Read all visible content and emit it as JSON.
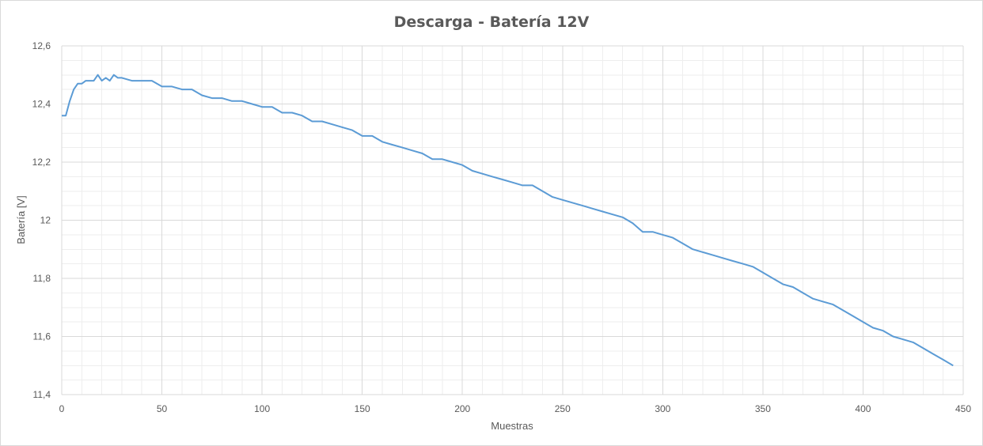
{
  "chart_data": {
    "type": "line",
    "title": "Descarga - Batería 12V",
    "xlabel": "Muestras",
    "ylabel": "Batería [V]",
    "xlim": [
      0,
      450
    ],
    "ylim": [
      11.4,
      12.6
    ],
    "x_ticks": [
      "0",
      "50",
      "100",
      "150",
      "200",
      "250",
      "300",
      "350",
      "400",
      "450"
    ],
    "y_ticks": [
      "11,4",
      "11,6",
      "11,8",
      "12",
      "12,2",
      "12,4",
      "12,6"
    ],
    "grid": true,
    "legend": "none",
    "colors": {
      "line": "#5b9bd5",
      "major_grid": "#d9d9d9",
      "minor_grid": "#eeeeee"
    },
    "series": [
      {
        "x": [
          0,
          2,
          4,
          6,
          8,
          10,
          12,
          14,
          16,
          18,
          20,
          22,
          24,
          26,
          28,
          30,
          35,
          40,
          45,
          50,
          55,
          60,
          65,
          70,
          75,
          80,
          85,
          90,
          95,
          100,
          105,
          110,
          115,
          120,
          125,
          130,
          135,
          140,
          145,
          150,
          155,
          160,
          165,
          170,
          175,
          180,
          185,
          190,
          195,
          200,
          205,
          210,
          215,
          220,
          225,
          230,
          235,
          240,
          245,
          250,
          255,
          260,
          265,
          270,
          275,
          280,
          285,
          290,
          295,
          300,
          305,
          310,
          315,
          320,
          325,
          330,
          335,
          340,
          345,
          350,
          355,
          360,
          365,
          370,
          375,
          380,
          385,
          390,
          395,
          400,
          405,
          410,
          415,
          420,
          425,
          430,
          435,
          440,
          445
        ],
        "values": [
          12.36,
          12.36,
          12.41,
          12.45,
          12.47,
          12.47,
          12.48,
          12.48,
          12.48,
          12.5,
          12.48,
          12.49,
          12.48,
          12.5,
          12.49,
          12.49,
          12.48,
          12.48,
          12.48,
          12.46,
          12.46,
          12.45,
          12.45,
          12.43,
          12.42,
          12.42,
          12.41,
          12.41,
          12.4,
          12.39,
          12.39,
          12.37,
          12.37,
          12.36,
          12.34,
          12.34,
          12.33,
          12.32,
          12.31,
          12.29,
          12.29,
          12.27,
          12.26,
          12.25,
          12.24,
          12.23,
          12.21,
          12.21,
          12.2,
          12.19,
          12.17,
          12.16,
          12.15,
          12.14,
          12.13,
          12.12,
          12.12,
          12.1,
          12.08,
          12.07,
          12.06,
          12.05,
          12.04,
          12.03,
          12.02,
          12.01,
          11.99,
          11.96,
          11.96,
          11.95,
          11.94,
          11.92,
          11.9,
          11.89,
          11.88,
          11.87,
          11.86,
          11.85,
          11.84,
          11.82,
          11.8,
          11.78,
          11.77,
          11.75,
          11.73,
          11.72,
          11.71,
          11.69,
          11.67,
          11.65,
          11.63,
          11.62,
          11.6,
          11.59,
          11.58,
          11.56,
          11.54,
          11.52,
          11.5
        ]
      }
    ]
  }
}
